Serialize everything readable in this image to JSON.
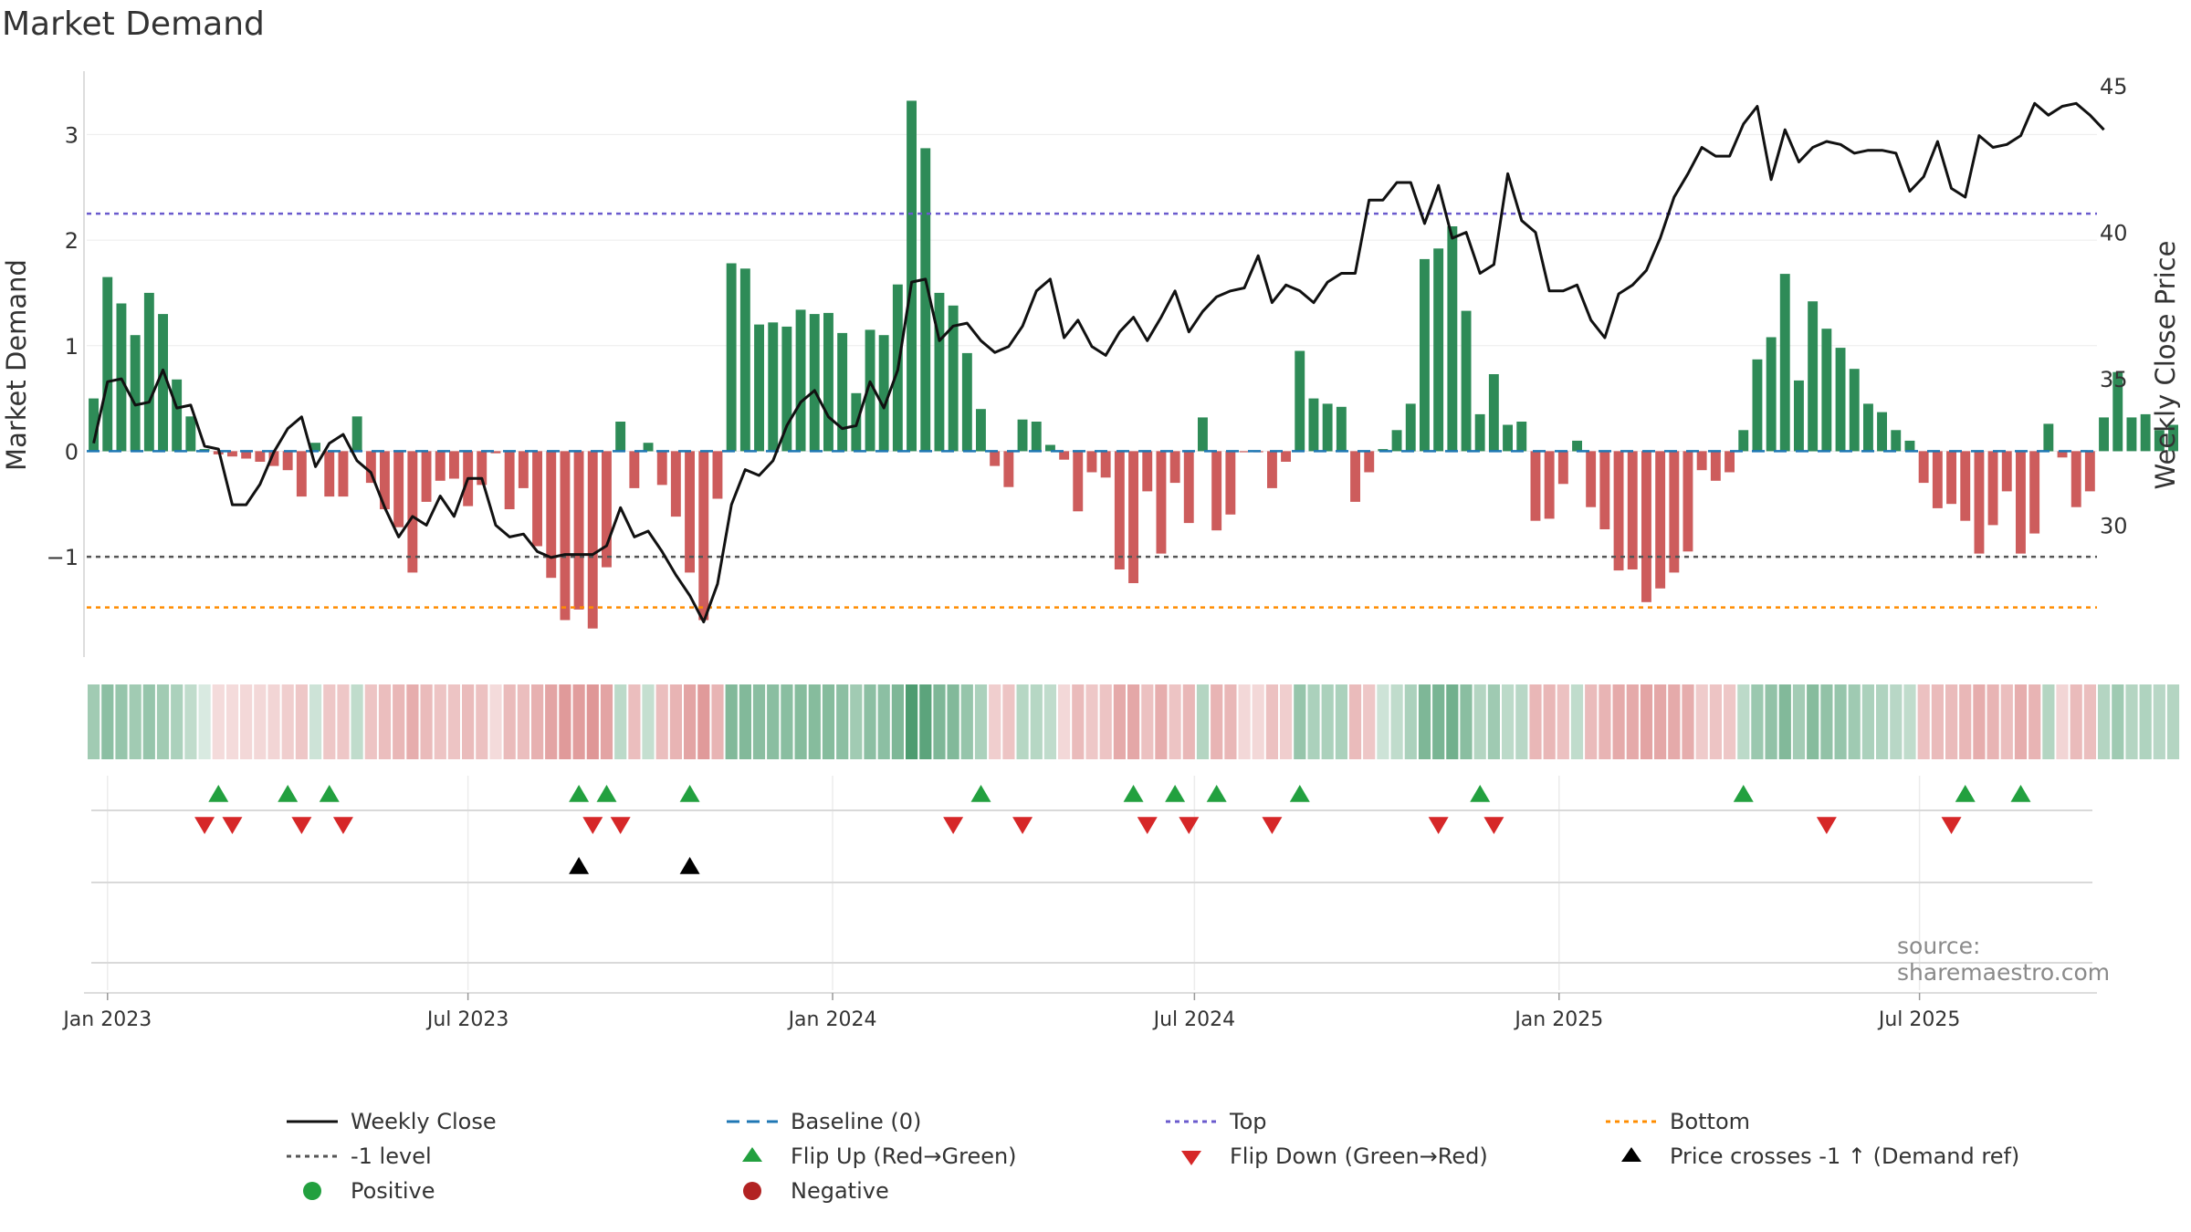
{
  "title": "Market Demand",
  "source": "source: sharemaestro.com",
  "colors": {
    "pos": "#2e8b57",
    "neg": "#cd5c5c",
    "price": "#111111",
    "baseline": "#1f77b4",
    "top": "#6a5acd",
    "bottom": "#ff8c00",
    "minus_one": "#555555",
    "flip_up": "#22a03f",
    "flip_down": "#d62728",
    "cross": "#000000",
    "positive_dot": "#22a03f",
    "negative_dot": "#b22222"
  },
  "legend": [
    {
      "key": "close",
      "label": "Weekly Close",
      "symbol": "solid-line",
      "color": "#111111"
    },
    {
      "key": "baseline",
      "label": "Baseline (0)",
      "symbol": "dashed-line",
      "color": "#1f77b4"
    },
    {
      "key": "top",
      "label": "Top",
      "symbol": "dotted-line",
      "color": "#6a5acd"
    },
    {
      "key": "bottom",
      "label": "Bottom",
      "symbol": "dotted-line",
      "color": "#ff8c00"
    },
    {
      "key": "minus1",
      "label": "-1 level",
      "symbol": "dotted-line",
      "color": "#555555"
    },
    {
      "key": "flipup",
      "label": "Flip Up (Red→Green)",
      "symbol": "triangle-up",
      "color": "#22a03f"
    },
    {
      "key": "flipdown",
      "label": "Flip Down (Green→Red)",
      "symbol": "triangle-down",
      "color": "#d62728"
    },
    {
      "key": "cross",
      "label": "Price crosses -1 ↑ (Demand ref)",
      "symbol": "triangle-up",
      "color": "#000000"
    },
    {
      "key": "positive",
      "label": "Positive",
      "symbol": "circle",
      "color": "#22a03f"
    },
    {
      "key": "negative",
      "label": "Negative",
      "symbol": "circle",
      "color": "#b22222"
    }
  ],
  "chart_data": {
    "type": "bar",
    "title": "Market Demand",
    "ylabel": "Market Demand",
    "y2label": "Weekly Close Price",
    "ylim": [
      -1.95,
      3.6
    ],
    "y2lim": [
      25.5,
      45.5
    ],
    "yticks": [
      -1,
      0,
      1,
      2,
      3
    ],
    "yticklabels": [
      "−1",
      "0",
      "1",
      "2",
      "3"
    ],
    "y2ticks": [
      30,
      35,
      40,
      45
    ],
    "xticks": [
      {
        "week": 1.5,
        "label": "Jan 2023"
      },
      {
        "week": 27.5,
        "label": "Jul 2023"
      },
      {
        "week": 53.8,
        "label": "Jan 2024"
      },
      {
        "week": 79.9,
        "label": "Jul 2024"
      },
      {
        "week": 106.2,
        "label": "Jan 2025"
      },
      {
        "week": 132.2,
        "label": "Jul 2025"
      }
    ],
    "weeks": 145,
    "demand": [
      0.5,
      1.65,
      1.4,
      1.1,
      1.5,
      1.3,
      0.68,
      0.33,
      0.02,
      -0.03,
      -0.05,
      -0.07,
      -0.1,
      -0.14,
      -0.18,
      -0.43,
      0.08,
      -0.43,
      -0.43,
      0.33,
      -0.3,
      -0.55,
      -0.72,
      -1.15,
      -0.48,
      -0.28,
      -0.26,
      -0.52,
      -0.32,
      -0.02,
      -0.55,
      -0.35,
      -0.9,
      -1.2,
      -1.6,
      -1.5,
      -1.68,
      -1.1,
      0.28,
      -0.35,
      0.08,
      -0.32,
      -0.62,
      -1.15,
      -1.6,
      -0.45,
      1.78,
      1.73,
      1.2,
      1.22,
      1.18,
      1.34,
      1.3,
      1.31,
      1.12,
      0.55,
      1.15,
      1.1,
      1.58,
      3.32,
      2.87,
      1.5,
      1.38,
      0.93,
      0.4,
      -0.14,
      -0.34,
      0.3,
      0.28,
      0.06,
      -0.08,
      -0.57,
      -0.2,
      -0.25,
      -1.12,
      -1.25,
      -0.38,
      -0.97,
      -0.3,
      -0.68,
      0.32,
      -0.75,
      -0.6,
      -0.01,
      -0.01,
      -0.35,
      -0.1,
      0.95,
      0.5,
      0.45,
      0.42,
      -0.48,
      -0.2,
      0.02,
      0.2,
      0.45,
      1.82,
      1.92,
      2.13,
      1.33,
      0.35,
      0.73,
      0.25,
      0.28,
      -0.66,
      -0.64,
      -0.31,
      0.1,
      -0.53,
      -0.74,
      -1.13,
      -1.12,
      -1.43,
      -1.3,
      -1.15,
      -0.95,
      -0.18,
      -0.28,
      -0.2,
      0.2,
      0.87,
      1.08,
      1.68,
      0.67,
      1.42,
      1.16,
      0.98,
      0.78,
      0.45,
      0.37,
      0.2,
      0.1,
      -0.3,
      -0.54,
      -0.5,
      -0.66,
      -0.97,
      -0.7,
      -0.38,
      -0.97,
      -0.78,
      0.26,
      -0.06,
      -0.53,
      -0.38,
      0.32,
      0.75,
      0.32,
      0.35,
      0.2,
      0.25
    ],
    "close": [
      32.8,
      34.9,
      35.0,
      34.1,
      34.2,
      35.3,
      34.0,
      34.1,
      32.7,
      32.6,
      30.7,
      30.7,
      31.4,
      32.5,
      33.3,
      33.7,
      32.0,
      32.8,
      33.1,
      32.2,
      31.8,
      30.6,
      29.6,
      30.3,
      30.0,
      31.0,
      30.3,
      31.6,
      31.6,
      30.0,
      29.6,
      29.7,
      29.1,
      28.9,
      29.0,
      29.0,
      29.0,
      29.3,
      30.6,
      29.6,
      29.8,
      29.1,
      28.3,
      27.6,
      26.7,
      28.0,
      30.7,
      31.9,
      31.7,
      32.2,
      33.4,
      34.2,
      34.6,
      33.7,
      33.3,
      33.4,
      34.9,
      34.0,
      35.3,
      38.3,
      38.4,
      36.3,
      36.8,
      36.9,
      36.3,
      35.9,
      36.1,
      36.8,
      38.0,
      38.4,
      36.4,
      37.0,
      36.1,
      35.8,
      36.6,
      37.1,
      36.3,
      37.1,
      38.0,
      36.6,
      37.3,
      37.8,
      38.0,
      38.1,
      39.2,
      37.6,
      38.2,
      38.0,
      37.6,
      38.3,
      38.6,
      38.6,
      41.1,
      41.1,
      41.7,
      41.7,
      40.3,
      41.6,
      39.8,
      40.0,
      38.6,
      38.9,
      42.0,
      40.4,
      40.0,
      38.0,
      38.0,
      38.2,
      37.0,
      36.4,
      37.9,
      38.2,
      38.7,
      39.8,
      41.2,
      42.0,
      42.9,
      42.6,
      42.6,
      43.7,
      44.3,
      41.8,
      43.5,
      42.4,
      42.9,
      43.1,
      43.0,
      42.7,
      42.8,
      42.8,
      42.7,
      41.4,
      41.9,
      43.1,
      41.5,
      41.2,
      43.3,
      42.9,
      43.0,
      43.3,
      44.4,
      44.0,
      44.3,
      44.4,
      44.0,
      43.5
    ],
    "heat_alpha": [
      0.45,
      0.55,
      0.5,
      0.45,
      0.5,
      0.45,
      0.4,
      0.3,
      0.18,
      0.22,
      0.22,
      0.24,
      0.24,
      0.26,
      0.3,
      0.34,
      0.24,
      0.34,
      0.34,
      0.3,
      0.36,
      0.4,
      0.44,
      0.5,
      0.42,
      0.36,
      0.36,
      0.42,
      0.38,
      0.22,
      0.42,
      0.4,
      0.48,
      0.56,
      0.62,
      0.6,
      0.64,
      0.56,
      0.32,
      0.4,
      0.28,
      0.4,
      0.46,
      0.56,
      0.62,
      0.46,
      0.6,
      0.6,
      0.56,
      0.56,
      0.56,
      0.58,
      0.58,
      0.58,
      0.55,
      0.45,
      0.55,
      0.55,
      0.62,
      0.85,
      0.78,
      0.62,
      0.6,
      0.5,
      0.4,
      0.3,
      0.36,
      0.35,
      0.35,
      0.3,
      0.24,
      0.42,
      0.34,
      0.36,
      0.52,
      0.54,
      0.38,
      0.5,
      0.36,
      0.44,
      0.36,
      0.46,
      0.44,
      0.24,
      0.24,
      0.38,
      0.3,
      0.5,
      0.4,
      0.4,
      0.4,
      0.42,
      0.34,
      0.24,
      0.3,
      0.4,
      0.62,
      0.64,
      0.68,
      0.56,
      0.36,
      0.46,
      0.32,
      0.34,
      0.44,
      0.44,
      0.38,
      0.3,
      0.42,
      0.46,
      0.52,
      0.52,
      0.56,
      0.54,
      0.52,
      0.5,
      0.32,
      0.36,
      0.34,
      0.32,
      0.48,
      0.52,
      0.6,
      0.44,
      0.58,
      0.52,
      0.5,
      0.46,
      0.4,
      0.38,
      0.34,
      0.3,
      0.38,
      0.42,
      0.42,
      0.44,
      0.5,
      0.46,
      0.4,
      0.5,
      0.46,
      0.36,
      0.26,
      0.42,
      0.4,
      0.36,
      0.46,
      0.36,
      0.38,
      0.34,
      0.36
    ],
    "flip_up": [
      9,
      14,
      17,
      35,
      37,
      43,
      64,
      75,
      78,
      81,
      87,
      100,
      119,
      135,
      139
    ],
    "flip_down": [
      8,
      10,
      15,
      18,
      36,
      38,
      62,
      67,
      76,
      79,
      85,
      97,
      101,
      125,
      134
    ],
    "cross_up": [
      35,
      43
    ],
    "levels": {
      "baseline": 0,
      "top": 2.25,
      "minus_one": -1,
      "bottom": -1.48
    }
  }
}
